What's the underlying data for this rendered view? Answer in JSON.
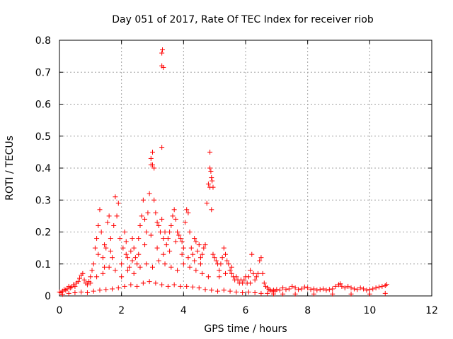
{
  "chart_data": {
    "type": "scatter",
    "title": "Day 051 of 2017, Rate Of TEC Index for receiver riob",
    "xlabel": "GPS time / hours",
    "ylabel": "ROTI / TECUs",
    "xlim": [
      0,
      12
    ],
    "ylim": [
      0,
      0.8
    ],
    "xticks": [
      0,
      2,
      4,
      6,
      8,
      10,
      12
    ],
    "yticks": [
      0,
      0.1,
      0.2,
      0.3,
      0.4,
      0.5,
      0.6,
      0.7,
      0.8
    ],
    "xtick_labels": [
      "0",
      "2",
      "4",
      "6",
      "8",
      "10",
      "12"
    ],
    "ytick_labels": [
      "0",
      "0.1",
      "0.2",
      "0.3",
      "0.4",
      "0.5",
      "0.6",
      "0.7",
      "0.8"
    ],
    "grid": true,
    "marker": "plus",
    "color": "#ff0000",
    "series": [
      {
        "name": "ROTI",
        "points": [
          [
            0.0,
            0.012
          ],
          [
            0.05,
            0.01
          ],
          [
            0.1,
            0.015
          ],
          [
            0.15,
            0.02
          ],
          [
            0.2,
            0.018
          ],
          [
            0.25,
            0.022
          ],
          [
            0.3,
            0.03
          ],
          [
            0.35,
            0.025
          ],
          [
            0.4,
            0.028
          ],
          [
            0.45,
            0.035
          ],
          [
            0.5,
            0.03
          ],
          [
            0.55,
            0.04
          ],
          [
            0.6,
            0.045
          ],
          [
            0.65,
            0.055
          ],
          [
            0.7,
            0.065
          ],
          [
            0.75,
            0.07
          ],
          [
            0.8,
            0.05
          ],
          [
            0.85,
            0.04
          ],
          [
            0.9,
            0.035
          ],
          [
            0.95,
            0.045
          ],
          [
            1.0,
            0.06
          ],
          [
            1.05,
            0.08
          ],
          [
            1.1,
            0.1
          ],
          [
            1.15,
            0.15
          ],
          [
            1.2,
            0.18
          ],
          [
            1.25,
            0.22
          ],
          [
            1.3,
            0.27
          ],
          [
            1.35,
            0.2
          ],
          [
            1.4,
            0.12
          ],
          [
            1.45,
            0.09
          ],
          [
            1.5,
            0.15
          ],
          [
            1.55,
            0.23
          ],
          [
            1.6,
            0.25
          ],
          [
            1.65,
            0.18
          ],
          [
            1.7,
            0.12
          ],
          [
            1.75,
            0.22
          ],
          [
            1.8,
            0.31
          ],
          [
            1.85,
            0.25
          ],
          [
            1.9,
            0.29
          ],
          [
            1.95,
            0.18
          ],
          [
            2.0,
            0.1
          ],
          [
            2.05,
            0.15
          ],
          [
            2.1,
            0.2
          ],
          [
            2.15,
            0.17
          ],
          [
            2.2,
            0.12
          ],
          [
            2.25,
            0.09
          ],
          [
            2.3,
            0.14
          ],
          [
            2.35,
            0.18
          ],
          [
            2.4,
            0.15
          ],
          [
            2.45,
            0.12
          ],
          [
            2.5,
            0.1
          ],
          [
            2.55,
            0.18
          ],
          [
            2.6,
            0.22
          ],
          [
            2.65,
            0.25
          ],
          [
            2.7,
            0.3
          ],
          [
            2.75,
            0.24
          ],
          [
            2.8,
            0.2
          ],
          [
            2.85,
            0.26
          ],
          [
            2.9,
            0.32
          ],
          [
            2.95,
            0.41
          ],
          [
            3.0,
            0.45
          ],
          [
            3.05,
            0.3
          ],
          [
            3.1,
            0.26
          ],
          [
            3.15,
            0.23
          ],
          [
            3.2,
            0.22
          ],
          [
            3.25,
            0.2
          ],
          [
            3.3,
            0.24
          ],
          [
            3.35,
            0.18
          ],
          [
            3.4,
            0.2
          ],
          [
            3.45,
            0.16
          ],
          [
            3.5,
            0.18
          ],
          [
            3.55,
            0.2
          ],
          [
            3.6,
            0.22
          ],
          [
            3.65,
            0.25
          ],
          [
            3.7,
            0.27
          ],
          [
            3.75,
            0.24
          ],
          [
            3.8,
            0.2
          ],
          [
            3.85,
            0.19
          ],
          [
            3.9,
            0.18
          ],
          [
            3.95,
            0.17
          ],
          [
            4.0,
            0.15
          ],
          [
            4.05,
            0.23
          ],
          [
            4.1,
            0.27
          ],
          [
            4.15,
            0.26
          ],
          [
            4.2,
            0.2
          ],
          [
            4.25,
            0.15
          ],
          [
            4.3,
            0.13
          ],
          [
            4.35,
            0.18
          ],
          [
            4.4,
            0.17
          ],
          [
            4.45,
            0.14
          ],
          [
            4.5,
            0.16
          ],
          [
            4.55,
            0.12
          ],
          [
            4.6,
            0.13
          ],
          [
            4.65,
            0.15
          ],
          [
            4.7,
            0.16
          ],
          [
            4.75,
            0.29
          ],
          [
            4.8,
            0.35
          ],
          [
            4.85,
            0.34
          ],
          [
            4.9,
            0.27
          ],
          [
            4.95,
            0.13
          ],
          [
            5.0,
            0.12
          ],
          [
            5.05,
            0.11
          ],
          [
            5.1,
            0.1
          ],
          [
            5.15,
            0.08
          ],
          [
            5.2,
            0.1
          ],
          [
            5.25,
            0.12
          ],
          [
            5.3,
            0.15
          ],
          [
            5.35,
            0.13
          ],
          [
            5.4,
            0.11
          ],
          [
            5.45,
            0.1
          ],
          [
            5.5,
            0.08
          ],
          [
            5.55,
            0.07
          ],
          [
            5.6,
            0.06
          ],
          [
            5.65,
            0.05
          ],
          [
            5.7,
            0.06
          ],
          [
            5.75,
            0.05
          ],
          [
            5.8,
            0.04
          ],
          [
            5.85,
            0.05
          ],
          [
            5.9,
            0.04
          ],
          [
            5.95,
            0.05
          ],
          [
            6.0,
            0.06
          ],
          [
            6.05,
            0.04
          ],
          [
            6.1,
            0.06
          ],
          [
            6.15,
            0.08
          ],
          [
            6.2,
            0.13
          ],
          [
            6.25,
            0.07
          ],
          [
            6.3,
            0.05
          ],
          [
            6.35,
            0.06
          ],
          [
            6.4,
            0.07
          ],
          [
            6.45,
            0.11
          ],
          [
            6.5,
            0.12
          ],
          [
            6.55,
            0.07
          ],
          [
            6.6,
            0.04
          ],
          [
            6.65,
            0.03
          ],
          [
            6.7,
            0.025
          ],
          [
            6.75,
            0.02
          ],
          [
            6.8,
            0.018
          ],
          [
            6.85,
            0.015
          ],
          [
            6.9,
            0.018
          ],
          [
            6.95,
            0.015
          ],
          [
            7.0,
            0.02
          ],
          [
            7.1,
            0.018
          ],
          [
            7.2,
            0.025
          ],
          [
            7.3,
            0.02
          ],
          [
            7.4,
            0.022
          ],
          [
            7.5,
            0.03
          ],
          [
            7.6,
            0.025
          ],
          [
            7.7,
            0.02
          ],
          [
            7.8,
            0.022
          ],
          [
            7.9,
            0.028
          ],
          [
            8.0,
            0.025
          ],
          [
            8.1,
            0.02
          ],
          [
            8.2,
            0.022
          ],
          [
            8.3,
            0.018
          ],
          [
            8.4,
            0.02
          ],
          [
            8.5,
            0.022
          ],
          [
            8.6,
            0.018
          ],
          [
            8.7,
            0.02
          ],
          [
            8.8,
            0.022
          ],
          [
            8.9,
            0.03
          ],
          [
            9.0,
            0.035
          ],
          [
            9.05,
            0.038
          ],
          [
            9.1,
            0.03
          ],
          [
            9.2,
            0.025
          ],
          [
            9.3,
            0.03
          ],
          [
            9.4,
            0.025
          ],
          [
            9.5,
            0.022
          ],
          [
            9.6,
            0.02
          ],
          [
            9.7,
            0.025
          ],
          [
            9.8,
            0.022
          ],
          [
            9.9,
            0.018
          ],
          [
            10.0,
            0.02
          ],
          [
            10.1,
            0.022
          ],
          [
            10.2,
            0.025
          ],
          [
            10.3,
            0.028
          ],
          [
            10.4,
            0.03
          ],
          [
            10.5,
            0.032
          ],
          [
            10.55,
            0.036
          ],
          [
            0.1,
            0.005
          ],
          [
            0.3,
            0.008
          ],
          [
            0.5,
            0.01
          ],
          [
            0.7,
            0.012
          ],
          [
            0.9,
            0.01
          ],
          [
            1.1,
            0.015
          ],
          [
            1.3,
            0.018
          ],
          [
            1.5,
            0.02
          ],
          [
            1.7,
            0.022
          ],
          [
            1.9,
            0.025
          ],
          [
            2.1,
            0.03
          ],
          [
            2.3,
            0.035
          ],
          [
            2.5,
            0.03
          ],
          [
            2.7,
            0.04
          ],
          [
            2.9,
            0.045
          ],
          [
            3.1,
            0.04
          ],
          [
            3.3,
            0.035
          ],
          [
            3.5,
            0.03
          ],
          [
            3.7,
            0.035
          ],
          [
            3.9,
            0.03
          ],
          [
            4.1,
            0.03
          ],
          [
            4.3,
            0.028
          ],
          [
            4.5,
            0.025
          ],
          [
            4.7,
            0.02
          ],
          [
            4.9,
            0.018
          ],
          [
            5.1,
            0.015
          ],
          [
            5.3,
            0.018
          ],
          [
            5.5,
            0.015
          ],
          [
            5.7,
            0.012
          ],
          [
            5.9,
            0.01
          ],
          [
            6.1,
            0.012
          ],
          [
            6.3,
            0.01
          ],
          [
            6.5,
            0.008
          ],
          [
            6.7,
            0.008
          ],
          [
            6.9,
            0.006
          ],
          [
            7.2,
            0.006
          ],
          [
            7.6,
            0.006
          ],
          [
            8.2,
            0.006
          ],
          [
            8.8,
            0.006
          ],
          [
            9.4,
            0.006
          ],
          [
            10.0,
            0.006
          ],
          [
            10.5,
            0.008
          ],
          [
            1.0,
            0.04
          ],
          [
            1.2,
            0.06
          ],
          [
            1.4,
            0.07
          ],
          [
            1.6,
            0.09
          ],
          [
            1.8,
            0.08
          ],
          [
            2.0,
            0.06
          ],
          [
            2.2,
            0.08
          ],
          [
            2.4,
            0.07
          ],
          [
            2.6,
            0.09
          ],
          [
            2.8,
            0.1
          ],
          [
            3.0,
            0.09
          ],
          [
            3.2,
            0.11
          ],
          [
            3.4,
            0.1
          ],
          [
            3.6,
            0.09
          ],
          [
            3.8,
            0.08
          ],
          [
            4.0,
            0.1
          ],
          [
            4.2,
            0.09
          ],
          [
            4.4,
            0.08
          ],
          [
            4.6,
            0.07
          ],
          [
            4.8,
            0.06
          ],
          [
            1.25,
            0.13
          ],
          [
            1.45,
            0.16
          ],
          [
            1.65,
            0.14
          ],
          [
            2.15,
            0.13
          ],
          [
            2.35,
            0.11
          ],
          [
            2.55,
            0.13
          ],
          [
            2.75,
            0.16
          ],
          [
            2.95,
            0.19
          ],
          [
            3.15,
            0.15
          ],
          [
            3.35,
            0.13
          ],
          [
            3.55,
            0.14
          ],
          [
            3.75,
            0.17
          ],
          [
            3.95,
            0.13
          ],
          [
            4.15,
            0.12
          ],
          [
            4.35,
            0.11
          ],
          [
            4.55,
            0.1
          ],
          [
            5.15,
            0.06
          ],
          [
            5.35,
            0.07
          ],
          [
            5.55,
            0.09
          ],
          [
            6.15,
            0.04
          ],
          [
            2.95,
            0.43
          ],
          [
            3.0,
            0.41
          ],
          [
            3.05,
            0.4
          ],
          [
            3.3,
            0.76
          ],
          [
            3.32,
            0.77
          ],
          [
            3.35,
            0.715
          ],
          [
            3.3,
            0.72
          ],
          [
            3.3,
            0.465
          ],
          [
            4.85,
            0.45
          ],
          [
            4.85,
            0.4
          ],
          [
            4.88,
            0.39
          ],
          [
            4.9,
            0.37
          ],
          [
            4.92,
            0.36
          ],
          [
            4.95,
            0.34
          ]
        ]
      }
    ]
  }
}
